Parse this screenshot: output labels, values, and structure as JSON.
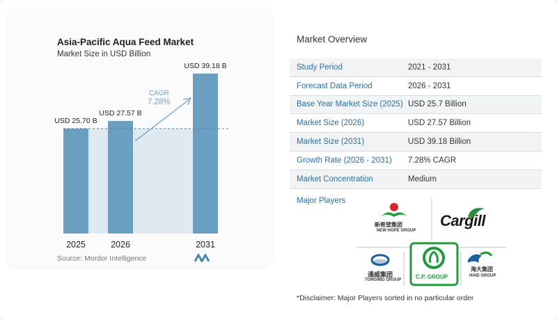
{
  "chart": {
    "title": "Asia-Pacific Aqua Feed Market",
    "subtitle": "Market Size in USD Billion",
    "source": "Source:  Mordor Intelligence",
    "cagr_label": "CAGR",
    "cagr_value": "7.28%"
  },
  "chart_data": {
    "type": "bar",
    "title": "Asia-Pacific Aqua Feed Market",
    "subtitle": "Market Size in USD Billion",
    "categories": [
      "2025",
      "2026",
      "2031"
    ],
    "values": [
      25.7,
      27.57,
      39.18
    ],
    "data_labels": [
      "USD 25.70 B",
      "USD 27.57 B",
      "USD 39.18 B"
    ],
    "ylabel": "",
    "xlabel": "",
    "ylim": [
      0,
      40
    ],
    "bar_color": "#6a9fc1",
    "highlight_color": "#dfe9f1",
    "reference_line": 25.7,
    "annotation": {
      "label": "CAGR",
      "value": "7.28%"
    }
  },
  "overview": {
    "title": "Market Overview",
    "rows": [
      {
        "label": "Study Period",
        "value": "2021 - 2031"
      },
      {
        "label": "Forecast Data Period",
        "value": "2026 - 2031"
      },
      {
        "label": "Base Year Market Size (2025)",
        "value": "USD 25.7 Billion"
      },
      {
        "label": "Market Size (2026)",
        "value": "USD 27.57 Billion"
      },
      {
        "label": "Market Size (2031)",
        "value": "USD 39.18 Billion"
      },
      {
        "label": "Growth Rate (2026 - 2031)",
        "value": "7.28% CAGR"
      },
      {
        "label": "Market Concentration",
        "value": "Medium"
      }
    ]
  },
  "players": {
    "title": "Major Players",
    "new_hope": "NEW HOPE GROUP",
    "new_hope_cn": "新希望集团",
    "cargill": "Cargill",
    "tongwei": "TONGWEI GROUP",
    "tongwei_cn": "通威集团",
    "cp": "C.P. GROUP",
    "haid": "HAID GROUP",
    "haid_cn": "海大集团"
  },
  "disclaimer": "*Disclaimer: Major Players sorted in no particular order",
  "colors": {
    "accent": "#2a6ea6",
    "bar": "#6a9fc1",
    "cp_green": "#1f9a3b",
    "new_hope_red": "#d7262a"
  }
}
